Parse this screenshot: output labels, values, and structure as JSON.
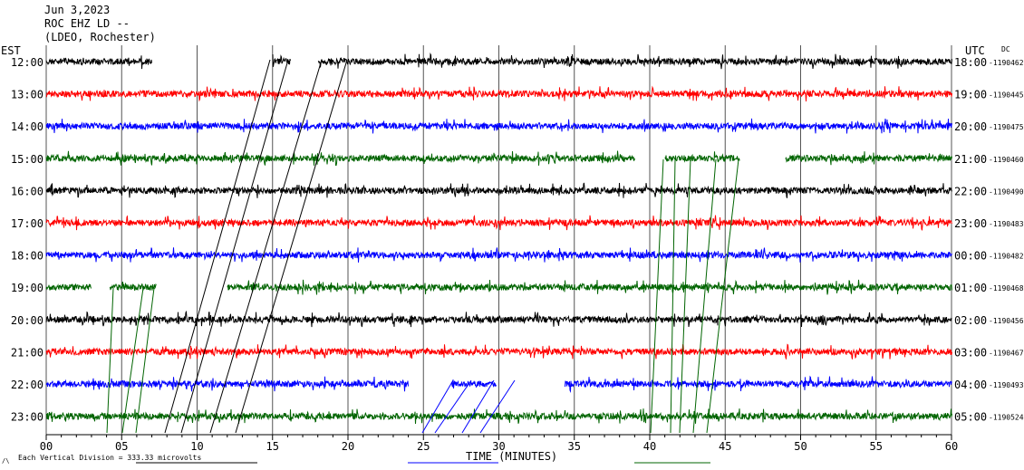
{
  "header": {
    "date": "Jun 3,2023",
    "station": "ROC EHZ LD --",
    "network": "(LDEO, Rochester)"
  },
  "chart_data": {
    "type": "line",
    "title": "Jun 3,2023",
    "left_axis_label": "EST",
    "right_axis_label": "UTC",
    "dc_label": "DC",
    "xlabel": "TIME (MINUTES)",
    "footer_note": "Each Vertical Division = 333.33 microvolts",
    "footer_symbol": "/\\",
    "xlim": [
      0,
      60
    ],
    "x_ticks": [
      "00",
      "05",
      "10",
      "15",
      "20",
      "25",
      "30",
      "35",
      "40",
      "45",
      "50",
      "55",
      "60"
    ],
    "grid": true,
    "trace_colors": [
      "#000000",
      "#ff0000",
      "#0000ff",
      "#006400"
    ],
    "rows": [
      {
        "est": "12:00",
        "utc": "18:00",
        "dc": "-1190462"
      },
      {
        "est": "13:00",
        "utc": "19:00",
        "dc": "-1190445"
      },
      {
        "est": "14:00",
        "utc": "20:00",
        "dc": "-1190475"
      },
      {
        "est": "15:00",
        "utc": "21:00",
        "dc": "-1190460"
      },
      {
        "est": "16:00",
        "utc": "22:00",
        "dc": "-1190490"
      },
      {
        "est": "17:00",
        "utc": "23:00",
        "dc": "-1190483"
      },
      {
        "est": "18:00",
        "utc": "00:00",
        "dc": "-1190482"
      },
      {
        "est": "19:00",
        "utc": "01:00",
        "dc": "-1190468"
      },
      {
        "est": "20:00",
        "utc": "02:00",
        "dc": "-1190456"
      },
      {
        "est": "21:00",
        "utc": "03:00",
        "dc": "-1190467"
      },
      {
        "est": "22:00",
        "utc": "04:00",
        "dc": "-1190493"
      },
      {
        "est": "23:00",
        "utc": "05:00",
        "dc": "-1190524"
      }
    ],
    "gaps": [
      {
        "row": 0,
        "from_min": 7,
        "to_min": 15
      },
      {
        "row": 0,
        "from_min": 16.2,
        "to_min": 18
      },
      {
        "row": 3,
        "from_min": 39,
        "to_min": 41
      },
      {
        "row": 3,
        "from_min": 46,
        "to_min": 49
      },
      {
        "row": 7,
        "from_min": 3,
        "to_min": 4.2
      },
      {
        "row": 7,
        "from_min": 7.3,
        "to_min": 12
      },
      {
        "row": 10,
        "from_min": 24,
        "to_min": 26.8
      },
      {
        "row": 10,
        "from_min": 29.8,
        "to_min": 34.3
      }
    ]
  }
}
